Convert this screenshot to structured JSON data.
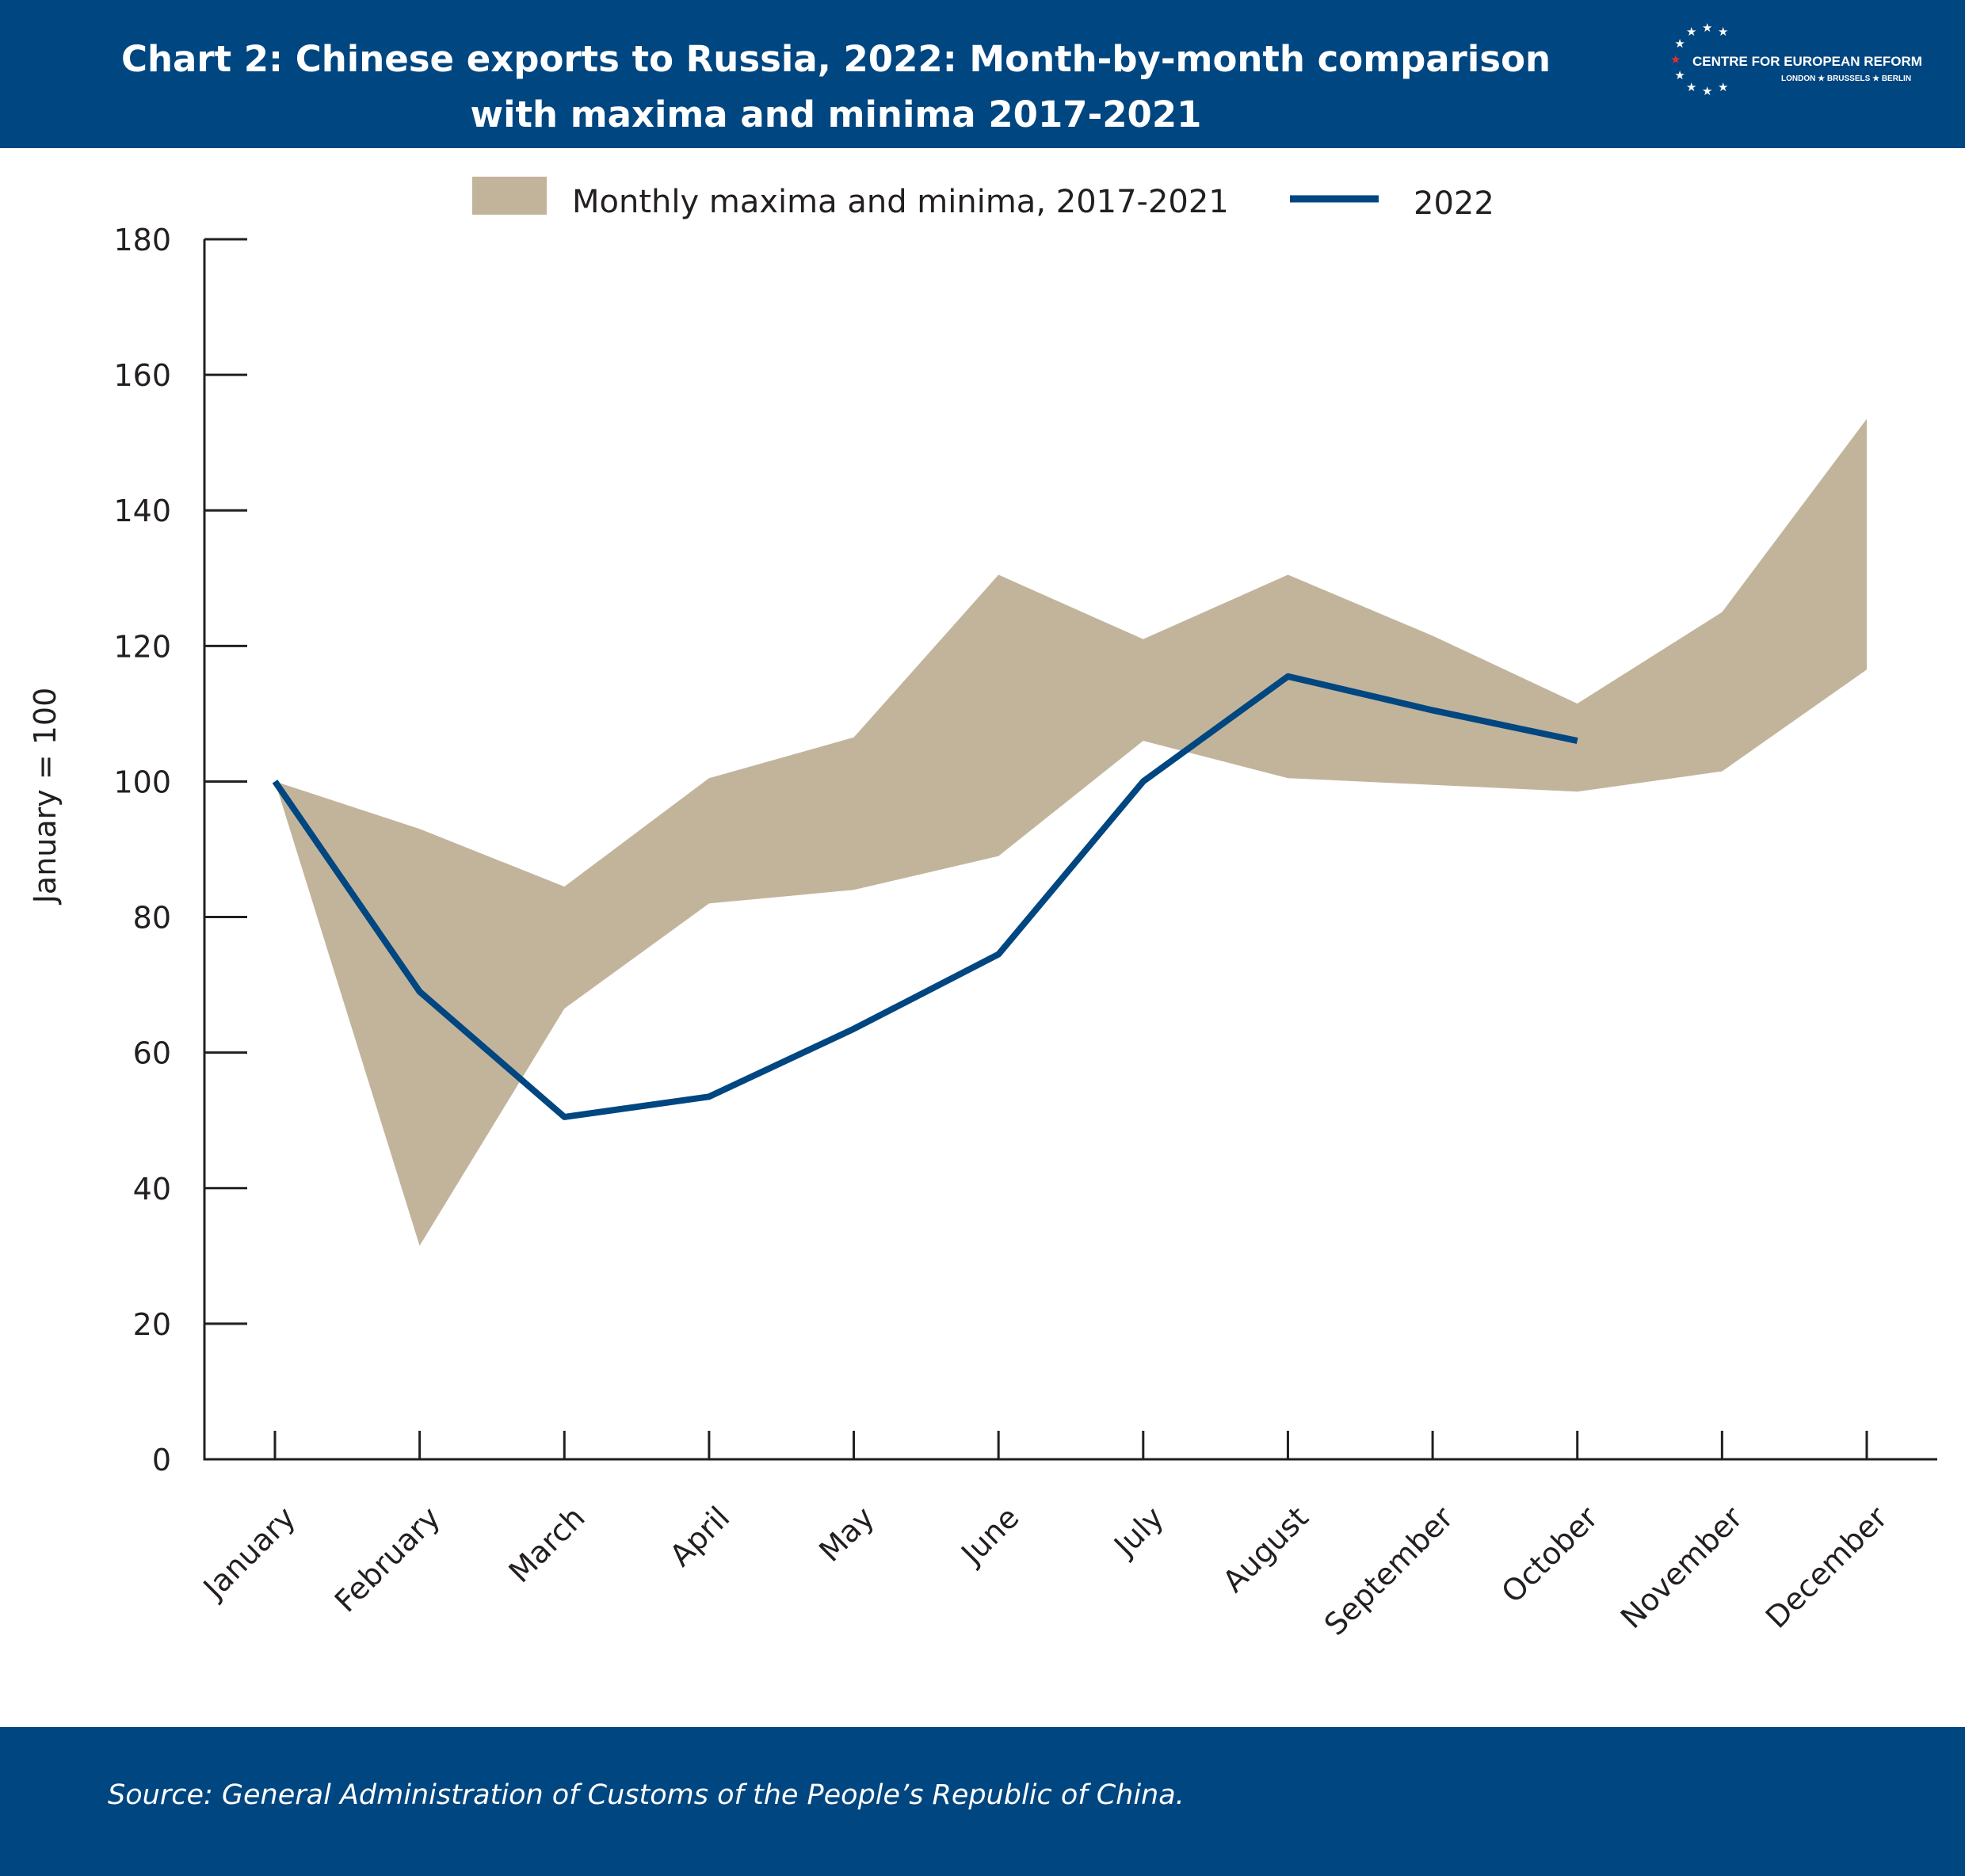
{
  "header": {
    "title_line1": "Chart 2: Chinese exports to Russia, 2022: Month-by-month comparison",
    "title_line2": "with maxima and minima 2017-2021"
  },
  "logo": {
    "name": "CENTRE FOR EUROPEAN REFORM",
    "cities": "LONDON ★ BRUSSELS ★ BERLIN",
    "icon": "eu-star-circle-icon"
  },
  "footer": {
    "source": "Source: General Administration of Customs of the People’s Republic of China."
  },
  "colors": {
    "brand": "#004680",
    "band": "#c2b49b",
    "line": "#004680",
    "axis": "#231f20",
    "logo_star_red": "#e03131"
  },
  "chart_data": {
    "type": "area",
    "title": "Chart 2: Chinese exports to Russia, 2022: Month-by-month comparison with maxima and minima 2017-2021",
    "xlabel": "",
    "ylabel": "January = 100",
    "ylim": [
      0,
      180
    ],
    "yticks": [
      0,
      20,
      40,
      60,
      80,
      100,
      120,
      140,
      160,
      180
    ],
    "grid": false,
    "legend_position": "top-center",
    "categories": [
      "January",
      "February",
      "March",
      "April",
      "May",
      "June",
      "July",
      "August",
      "September",
      "October",
      "November",
      "December"
    ],
    "series": [
      {
        "name": "Monthly maxima and minima, 2017-2021",
        "type": "band",
        "upper": [
          100,
          93,
          84.5,
          100.5,
          106.5,
          130.5,
          121,
          130.5,
          121.5,
          111.5,
          125,
          153.5
        ],
        "lower": [
          100,
          31.5,
          66.5,
          82,
          84,
          89,
          106,
          100.5,
          99.5,
          98.5,
          101.5,
          116.5
        ]
      },
      {
        "name": "2022",
        "type": "line",
        "values": [
          100,
          69,
          50.5,
          53.5,
          63.5,
          74.5,
          100,
          115.5,
          110.5,
          106,
          null,
          null
        ]
      }
    ]
  }
}
